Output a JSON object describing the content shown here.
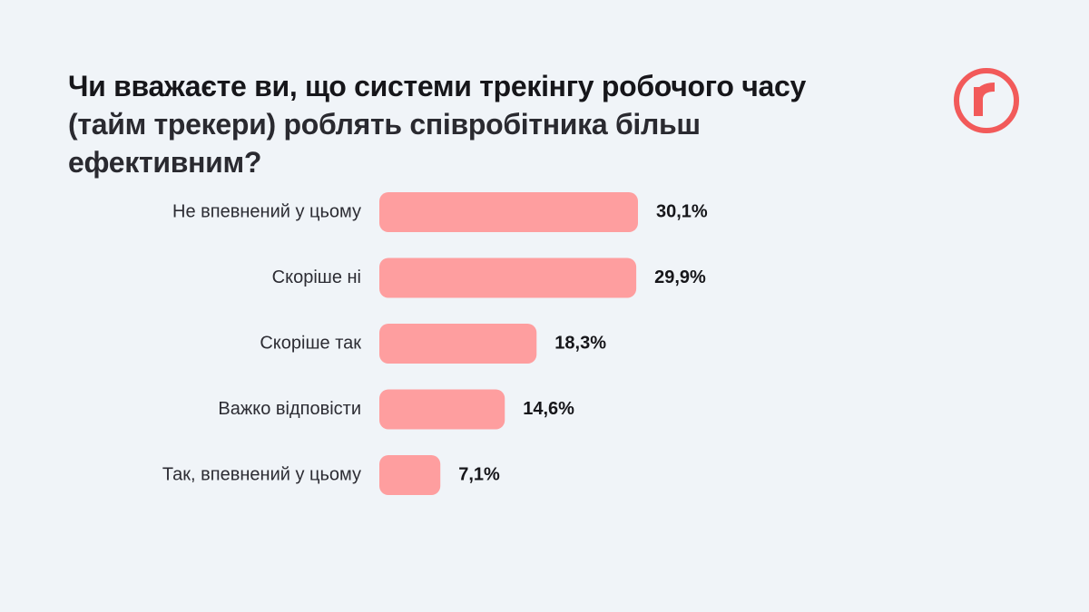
{
  "chart_data": {
    "type": "bar",
    "orientation": "horizontal",
    "title": [
      "Чи вважаєте ви, що системи трекінгу робочого часу",
      "(тайм трекери) роблять співробітника більш ефективним?"
    ],
    "categories": [
      "Не впевнений у цьому",
      "Скоріше ні",
      "Скоріше так",
      "Важко відповісти",
      "Так, впевнений у цьому"
    ],
    "values": [
      30.1,
      29.9,
      18.3,
      14.6,
      7.1
    ],
    "value_labels": [
      "30,1%",
      "29,9%",
      "18,3%",
      "14,6%",
      "7,1%"
    ],
    "color": "#fe9e9f"
  }
}
